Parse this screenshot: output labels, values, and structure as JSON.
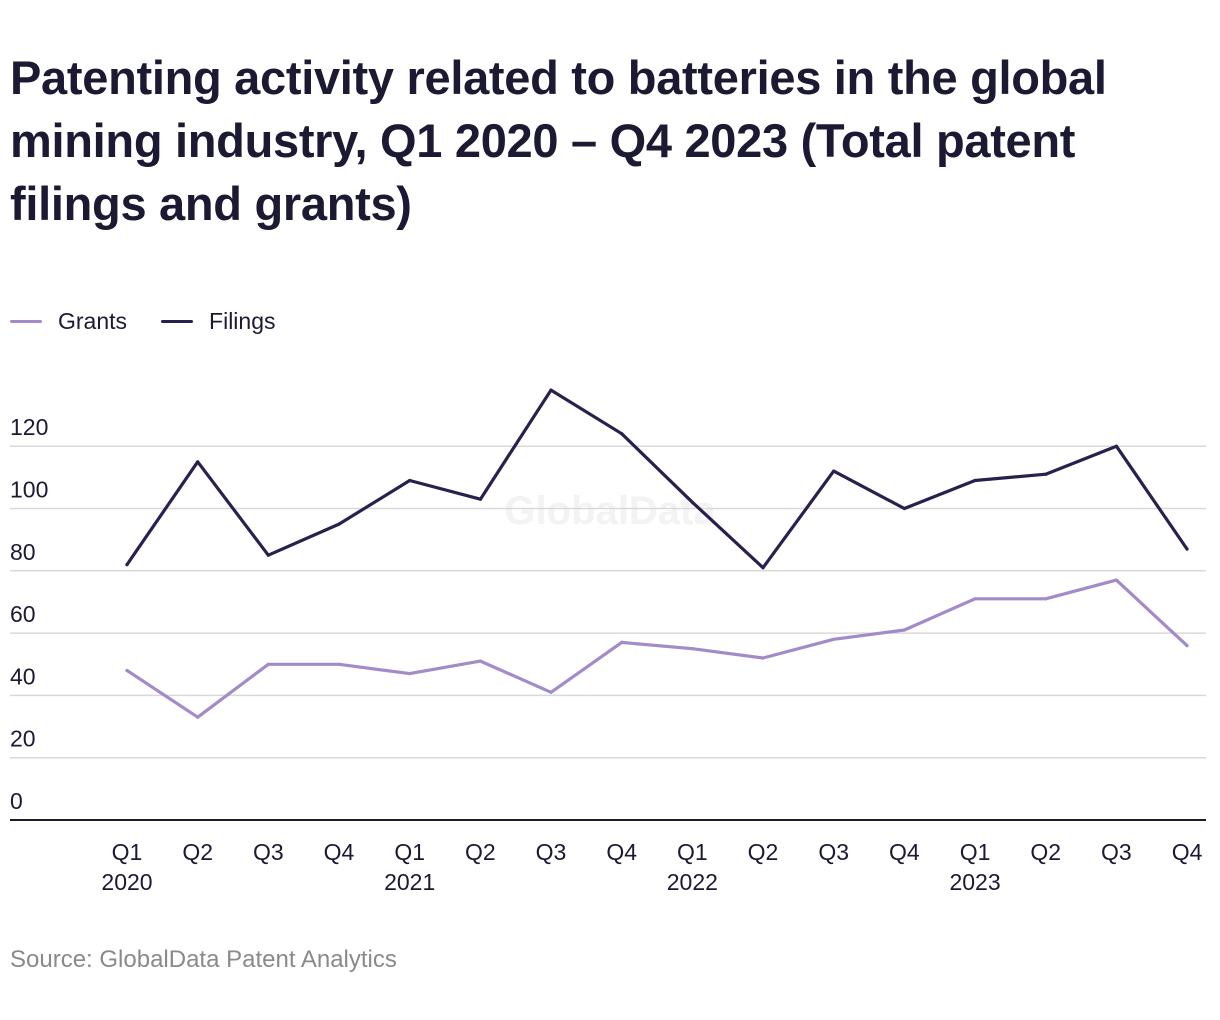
{
  "title": "Patenting activity related to batteries in the global mining industry, Q1 2020 – Q4 2023 (Total patent filings and grants)",
  "source": "Source: GlobalData Patent Analytics",
  "watermark": "GlobalData",
  "colors": {
    "grants": "#a38bc9",
    "filings": "#2b1f4d",
    "grid": "#d9d9d9",
    "axis": "#1c1a33",
    "watermark": "#f3f3f3"
  },
  "chart_data": {
    "type": "line",
    "title": "Patenting activity related to batteries in the global mining industry, Q1 2020 – Q4 2023 (Total patent filings and grants)",
    "xlabel": "",
    "ylabel": "",
    "ylim": [
      0,
      140
    ],
    "yticks": [
      0,
      20,
      40,
      60,
      80,
      100,
      120
    ],
    "grid": true,
    "legend_position": "top-left",
    "categories": [
      "Q1",
      "Q2",
      "Q3",
      "Q4",
      "Q1",
      "Q2",
      "Q3",
      "Q4",
      "Q1",
      "Q2",
      "Q3",
      "Q4",
      "Q1",
      "Q2",
      "Q3",
      "Q4"
    ],
    "year_labels": [
      "2020",
      "",
      "",
      "",
      "2021",
      "",
      "",
      "",
      "2022",
      "",
      "",
      "",
      "2023",
      "",
      "",
      ""
    ],
    "series": [
      {
        "name": "Grants",
        "values": [
          48,
          33,
          50,
          50,
          47,
          51,
          41,
          57,
          55,
          52,
          58,
          61,
          71,
          71,
          77,
          56
        ]
      },
      {
        "name": "Filings",
        "values": [
          82,
          115,
          85,
          95,
          109,
          103,
          138,
          124,
          102,
          81,
          112,
          100,
          109,
          111,
          120,
          87
        ]
      }
    ]
  }
}
